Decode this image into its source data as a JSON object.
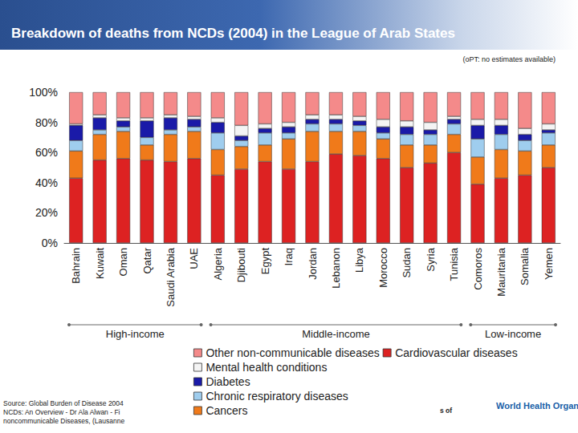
{
  "chart_data": {
    "type": "bar",
    "title": "Breakdown of deaths from NCDs (2004) in the League of Arab States",
    "annotation": "(oPT: no estimates available)",
    "stacked": true,
    "grid": false,
    "legend": "bottom",
    "categories": [
      "Bahrain",
      "Kuwait",
      "Oman",
      "Qatar",
      "Saudi Arabia",
      "UAE",
      "Algeria",
      "Djibouti",
      "Egypt",
      "Iraq",
      "Jordan",
      "Lebanon",
      "Libya",
      "Morocco",
      "Sudan",
      "Syria",
      "Tunisia",
      "Comoros",
      "Mauritania",
      "Somalia",
      "Yemen"
    ],
    "groups": [
      {
        "label": "High-income",
        "categories": [
          "Bahrain",
          "Kuwait",
          "Oman",
          "Qatar",
          "Saudi Arabia",
          "UAE"
        ]
      },
      {
        "label": "Middle-income",
        "categories": [
          "Algeria",
          "Djibouti",
          "Egypt",
          "Iraq",
          "Jordan",
          "Lebanon",
          "Libya",
          "Morocco",
          "Sudan",
          "Syria",
          "Tunisia"
        ]
      },
      {
        "label": "Low-income",
        "categories": [
          "Comoros",
          "Mauritania",
          "Somalia",
          "Yemen"
        ]
      }
    ],
    "series": [
      {
        "name": "Cardiovascular diseases",
        "color": "#dd2222",
        "values": [
          43,
          55,
          56,
          55,
          54,
          56,
          45,
          49,
          54,
          49,
          54,
          59,
          58,
          56,
          50,
          53,
          60,
          39,
          43,
          45,
          50
        ]
      },
      {
        "name": "Cancers",
        "color": "#f07a1a",
        "values": [
          18,
          17,
          18,
          10,
          18,
          18,
          17,
          15,
          11,
          20,
          20,
          15,
          16,
          13,
          15,
          12,
          12,
          18,
          19,
          16,
          15
        ]
      },
      {
        "name": "Chronic respiratory diseases",
        "color": "#9fcdee",
        "values": [
          7,
          3,
          3,
          5,
          3,
          3,
          11,
          4,
          8,
          4,
          5,
          5,
          4,
          4,
          7,
          7,
          7,
          12,
          10,
          7,
          8
        ]
      },
      {
        "name": "Diabetes",
        "color": "#1a1aa8",
        "values": [
          10,
          8,
          4,
          11,
          8,
          5,
          7,
          3,
          3,
          4,
          3,
          3,
          3,
          4,
          5,
          3,
          3,
          9,
          6,
          4,
          2
        ]
      },
      {
        "name": "Mental health conditions",
        "color": "#f4f4f4",
        "values": [
          1,
          2,
          2,
          2,
          2,
          2,
          3,
          7,
          3,
          3,
          3,
          3,
          3,
          5,
          4,
          5,
          2,
          4,
          4,
          4,
          4
        ]
      },
      {
        "name": "Other non-communicable diseases",
        "color": "#f48a8a",
        "values": [
          21,
          15,
          17,
          17,
          15,
          16,
          17,
          22,
          21,
          20,
          15,
          15,
          16,
          18,
          19,
          20,
          16,
          18,
          18,
          24,
          21
        ]
      }
    ],
    "ylim": [
      0,
      100
    ],
    "yticks": [
      {
        "value": 0,
        "label": "0%"
      },
      {
        "value": 20,
        "label": "20%"
      },
      {
        "value": 40,
        "label": "40%"
      },
      {
        "value": 60,
        "label": "60%"
      },
      {
        "value": 80,
        "label": "80%"
      },
      {
        "value": 100,
        "label": "100%"
      }
    ],
    "footer": [
      "Source: Global Burden of Disease 2004",
      "NCDs: An Overview - Dr Ala Alwan - Fi",
      "noncommunicable Diseases, (Lausanne"
    ],
    "footer_fragment": "s of",
    "logo": "World Health Organization"
  }
}
